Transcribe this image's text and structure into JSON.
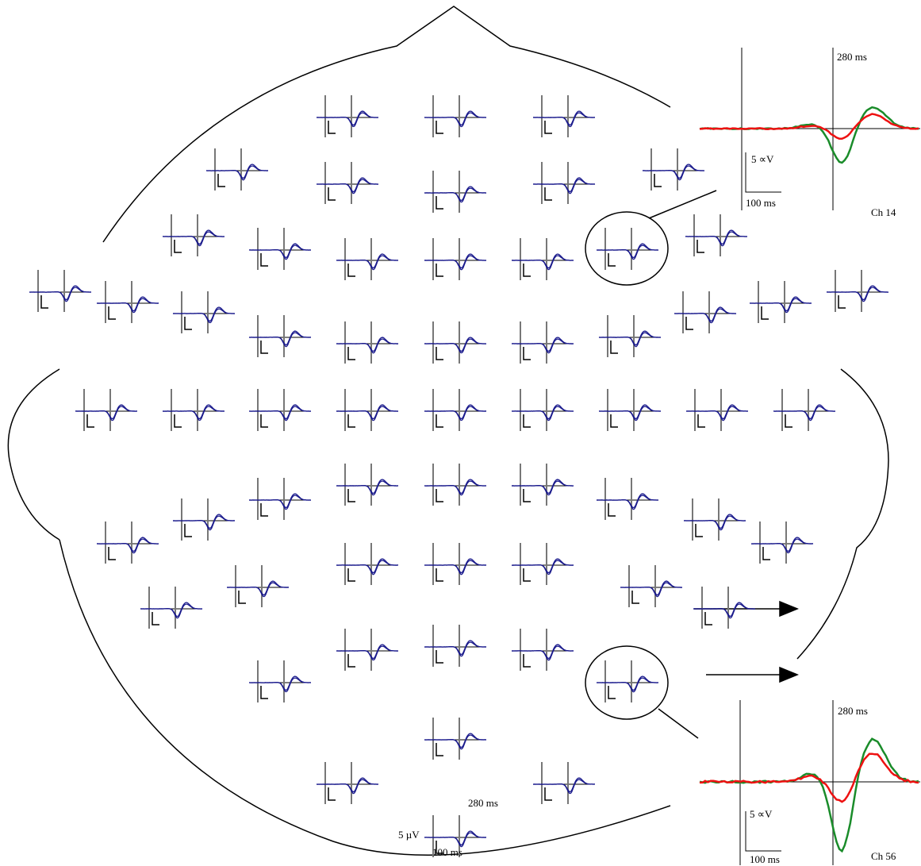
{
  "head_scale": {
    "latency": "280 ms",
    "amplitude": "5 µV",
    "time": "100 ms"
  },
  "insets": [
    {
      "latency": "280 ms",
      "amplitude": "5 ∝V",
      "time": "100 ms",
      "channel": "Ch 14"
    },
    {
      "latency": "280 ms",
      "amplitude": "5 ∝V",
      "time": "100 ms",
      "channel": "Ch 56"
    }
  ]
}
